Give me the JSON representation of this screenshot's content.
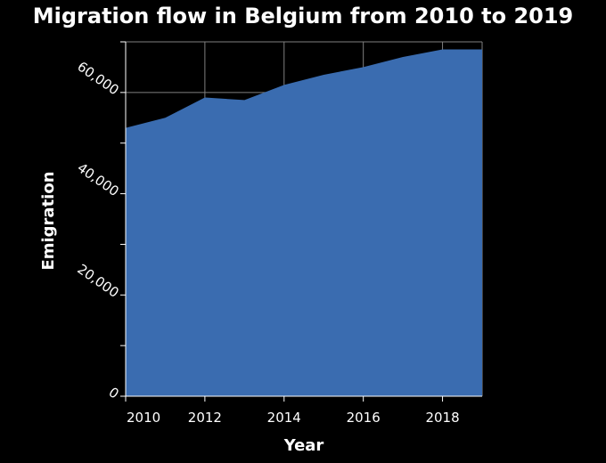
{
  "chart_data": {
    "type": "area",
    "title": "Migration flow in Belgium from 2010 to 2019",
    "xlabel": "Year",
    "ylabel": "Emigration",
    "x": [
      2010,
      2011,
      2012,
      2013,
      2014,
      2015,
      2016,
      2017,
      2018,
      2019
    ],
    "series": [
      {
        "values": [
          53000,
          55000,
          59000,
          58500,
          61500,
          63500,
          65000,
          67000,
          68500,
          68500
        ]
      }
    ],
    "xlim": [
      2010,
      2019
    ],
    "ylim": [
      0,
      70000
    ],
    "xticks": [
      2010,
      2012,
      2014,
      2016,
      2018
    ],
    "xtick_labels": [
      "2010",
      "2012",
      "2014",
      "2016",
      "2018"
    ],
    "yticks": [
      0,
      20000,
      40000,
      60000
    ],
    "ytick_labels": [
      "0",
      "20,000",
      "40,000",
      "60,000"
    ],
    "grid": true,
    "colors": {
      "area": "#3a6cb0",
      "background": "#000000",
      "grid": "#7f7f7f",
      "text": "#ffffff"
    }
  }
}
